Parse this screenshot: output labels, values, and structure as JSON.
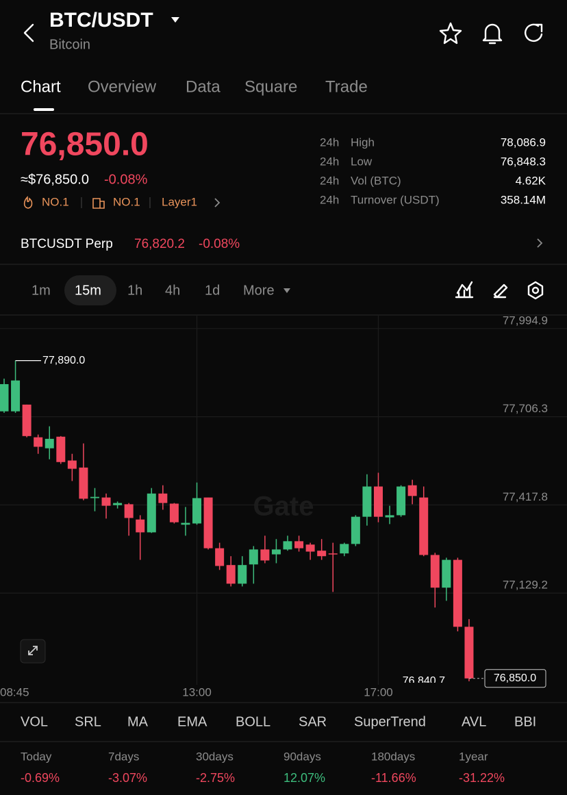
{
  "header": {
    "pair": "BTC/USDT",
    "name": "Bitcoin"
  },
  "tabs": [
    "Chart",
    "Overview",
    "Data",
    "Square",
    "Trade"
  ],
  "price": {
    "last": "76,850.0",
    "usd": "≈$76,850.0",
    "change": "-0.08%",
    "badges": [
      "NO.1",
      "NO.1",
      "Layer1"
    ]
  },
  "stats": [
    {
      "period": "24h",
      "label": "High",
      "value": "78,086.9"
    },
    {
      "period": "24h",
      "label": "Low",
      "value": "76,848.3"
    },
    {
      "period": "24h",
      "label": "Vol (BTC)",
      "value": "4.62K"
    },
    {
      "period": "24h",
      "label": "Turnover (USDT)",
      "value": "358.14M"
    }
  ],
  "perp": {
    "name": "BTCUSDT Perp",
    "price": "76,820.2",
    "change": "-0.08%"
  },
  "intervals": [
    "1m",
    "15m",
    "1h",
    "4h",
    "1d",
    "More"
  ],
  "chart_data": {
    "type": "candlestick",
    "watermark": "Gate",
    "up_color": "#3dbd7d",
    "down_color": "#f0475e",
    "categories": [
      "08:45",
      null,
      null,
      null,
      null,
      null,
      null,
      null,
      null,
      null,
      null,
      null,
      null,
      null,
      null,
      null,
      null,
      "13:00",
      null,
      null,
      null,
      null,
      null,
      null,
      null,
      null,
      null,
      null,
      null,
      null,
      null,
      null,
      null,
      "17:00",
      null,
      null,
      null,
      null,
      null,
      null,
      null,
      null
    ],
    "open": [
      77724,
      77724,
      77746,
      77639,
      77603,
      77641,
      77563,
      77540,
      77440,
      77442,
      77417,
      77420,
      77370,
      77328,
      77455,
      77422,
      77353,
      77357,
      77442,
      77276,
      77221,
      77160,
      77223,
      77272,
      77256,
      77272,
      77299,
      77288,
      77268,
      77259,
      77259,
      77290,
      77379,
      77478,
      77377,
      77384,
      77482,
      77442,
      77254,
      77147,
      77238,
      77019
    ],
    "high": [
      77831,
      77890.0,
      77746,
      77648,
      77675,
      77643,
      77585,
      77619,
      77473,
      77455,
      77429,
      77424,
      77384,
      77473,
      77482,
      77424,
      77411,
      77491,
      77442,
      77294,
      77250,
      77250,
      77283,
      77317,
      77306,
      77317,
      77317,
      77294,
      77306,
      77294,
      77294,
      77384,
      77518,
      77523,
      77415,
      77482,
      77500,
      77478,
      77261,
      77245,
      77245,
      77044
    ],
    "low": [
      77719,
      77719,
      77639,
      77585,
      77567,
      77552,
      77496,
      77433,
      77397,
      77373,
      77406,
      77317,
      77238,
      77326,
      77402,
      77357,
      77317,
      77353,
      77272,
      77205,
      77151,
      77151,
      77160,
      77227,
      77227,
      77268,
      77265,
      77238,
      77238,
      77133,
      77250,
      77283,
      77350,
      77361,
      77355,
      77379,
      77420,
      77250,
      77082,
      77104,
      77004,
      76840.7
    ],
    "close": [
      77813,
      77825,
      77643,
      77608,
      77634,
      77558,
      77536,
      77438,
      77444,
      77415,
      77424,
      77375,
      77328,
      77455,
      77424,
      77361,
      77359,
      77440,
      77276,
      77218,
      77160,
      77221,
      77272,
      77236,
      77272,
      77299,
      77276,
      77265,
      77250,
      77256,
      77290,
      77379,
      77478,
      77379,
      77384,
      77478,
      77447,
      77254,
      77147,
      77238,
      77019,
      76850.0
    ],
    "ylim": [
      76836,
      78037
    ],
    "yticks": [
      {
        "value": 77994.9,
        "label": "77,994.9"
      },
      {
        "value": 77706.3,
        "label": "77,706.3"
      },
      {
        "value": 77417.8,
        "label": "77,417.8"
      },
      {
        "value": 77129.2,
        "label": "77,129.2"
      }
    ],
    "grid": true,
    "high_label": {
      "value": 77890.0,
      "label": "77,890.0"
    },
    "low_label": {
      "value": 76840.7,
      "label": "76,840.7"
    },
    "last_label": {
      "value": 76850.0,
      "label": "76,850.0"
    }
  },
  "indicators": [
    "VOL",
    "SRL",
    "MA",
    "EMA",
    "BOLL",
    "SAR",
    "SuperTrend",
    "AVL",
    "BBI"
  ],
  "performance": [
    {
      "period": "Today",
      "change": "-0.69%"
    },
    {
      "period": "7days",
      "change": "-3.07%"
    },
    {
      "period": "30days",
      "change": "-2.75%"
    },
    {
      "period": "90days",
      "change": "12.07%"
    },
    {
      "period": "180days",
      "change": "-11.66%"
    },
    {
      "period": "1year",
      "change": "-31.22%"
    }
  ]
}
